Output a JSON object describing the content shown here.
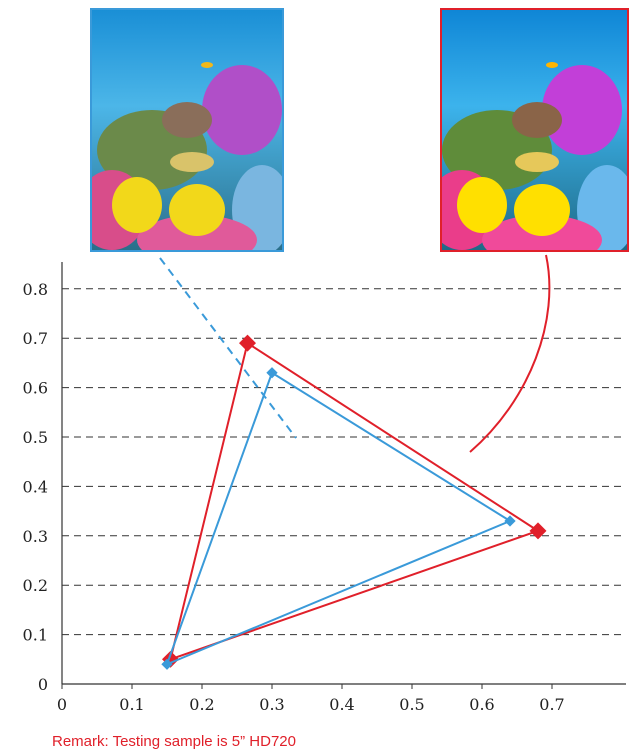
{
  "images": {
    "left": {
      "name": "reef-photo-standard",
      "border_color": "#3a9ad9"
    },
    "right": {
      "name": "reef-photo-wide-gamut",
      "border_color": "#e0202a"
    }
  },
  "remark": "Remark: Testing sample is 5”  HD720",
  "colors": {
    "red": "#e0202a",
    "blue": "#3a9ad9",
    "grid": "#333333"
  },
  "chart_data": {
    "type": "scatter",
    "title": "",
    "xlabel": "",
    "ylabel": "",
    "xlim": [
      0,
      0.8
    ],
    "ylim": [
      0,
      0.8
    ],
    "x_ticks": [
      "0",
      "0.1",
      "0.2",
      "0.3",
      "0.4",
      "0.5",
      "0.6",
      "0.7"
    ],
    "x_tick_values": [
      0,
      0.1,
      0.2,
      0.3,
      0.4,
      0.5,
      0.6,
      0.7
    ],
    "y_ticks": [
      "0",
      "0.1",
      "0.2",
      "0.3",
      "0.4",
      "0.5",
      "0.6",
      "0.7",
      "0.8"
    ],
    "y_tick_values": [
      0,
      0.1,
      0.2,
      0.3,
      0.4,
      0.5,
      0.6,
      0.7,
      0.8
    ],
    "grid": "horizontal-dashed",
    "series": [
      {
        "color": "#e0202a",
        "closed": true,
        "points": [
          [
            0.68,
            0.31
          ],
          [
            0.265,
            0.69
          ],
          [
            0.155,
            0.05
          ]
        ]
      },
      {
        "color": "#3a9ad9",
        "closed": true,
        "points": [
          [
            0.64,
            0.33
          ],
          [
            0.3,
            0.63
          ],
          [
            0.15,
            0.04
          ]
        ]
      }
    ]
  }
}
